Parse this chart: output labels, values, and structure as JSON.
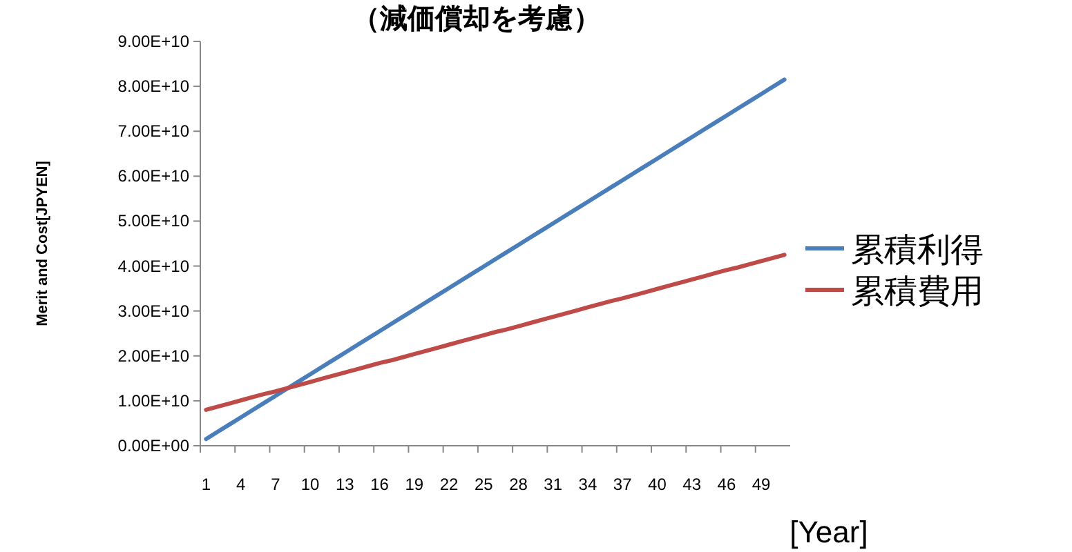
{
  "chart_data": {
    "type": "line",
    "title": "（減価償却を考慮）",
    "xlabel": "[Year]",
    "ylabel": "Merit and Cost[JPYEN]",
    "categories": [
      "1",
      null,
      null,
      "4",
      null,
      null,
      "7",
      null,
      null,
      "10",
      null,
      null,
      "13",
      null,
      null,
      "16",
      null,
      null,
      "19",
      null,
      null,
      "22",
      null,
      null,
      "25",
      null,
      null,
      "28",
      null,
      null,
      "31",
      null,
      null,
      "34",
      null,
      null,
      "37",
      null,
      null,
      "40",
      null,
      null,
      "43",
      null,
      null,
      "46",
      null,
      null,
      "49",
      null,
      null
    ],
    "series": [
      {
        "name": "累積利得",
        "color": "#4a7ebb",
        "values": [
          1500000000.0,
          3100000000.0,
          4700000000.0,
          6300000000.0,
          7900000000.0,
          9500000000.0,
          11100000000.0,
          12700000000.0,
          14300000000.0,
          15900000000.0,
          17500000000.0,
          19100000000.0,
          20700000000.0,
          22300000000.0,
          23900000000.0,
          25500000000.0,
          27100000000.0,
          28700000000.0,
          30300000000.0,
          31900000000.0,
          33500000000.0,
          35100000000.0,
          36700000000.0,
          38300000000.0,
          39900000000.0,
          41500000000.0,
          43100000000.0,
          44700000000.0,
          46300000000.0,
          47900000000.0,
          49500000000.0,
          51100000000.0,
          52700000000.0,
          54300000000.0,
          55900000000.0,
          57500000000.0,
          59100000000.0,
          60700000000.0,
          62300000000.0,
          63900000000.0,
          65500000000.0,
          67100000000.0,
          68700000000.0,
          70300000000.0,
          71900000000.0,
          73500000000.0,
          75100000000.0,
          76700000000.0,
          78300000000.0,
          79900000000.0,
          81500000000.0
        ]
      },
      {
        "name": "累積費用",
        "color": "#be4b48",
        "values": [
          8000000000.0,
          8700000000.0,
          9400000000.0,
          10100000000.0,
          10800000000.0,
          11500000000.0,
          12100000000.0,
          12800000000.0,
          13500000000.0,
          14200000000.0,
          14900000000.0,
          15600000000.0,
          16300000000.0,
          17000000000.0,
          17700000000.0,
          18400000000.0,
          19000000000.0,
          19700000000.0,
          20400000000.0,
          21100000000.0,
          21800000000.0,
          22500000000.0,
          23200000000.0,
          23900000000.0,
          24600000000.0,
          25300000000.0,
          25900000000.0,
          26600000000.0,
          27300000000.0,
          28000000000.0,
          28700000000.0,
          29400000000.0,
          30100000000.0,
          30800000000.0,
          31500000000.0,
          32200000000.0,
          32800000000.0,
          33500000000.0,
          34200000000.0,
          34900000000.0,
          35600000000.0,
          36300000000.0,
          37000000000.0,
          37700000000.0,
          38400000000.0,
          39100000000.0,
          39700000000.0,
          40400000000.0,
          41100000000.0,
          41800000000.0,
          42500000000.0
        ]
      }
    ],
    "ylim": [
      0,
      90000000000.0
    ],
    "yticks": [
      {
        "value": 0,
        "label": "0.00E+00"
      },
      {
        "value": 10000000000.0,
        "label": "1.00E+10"
      },
      {
        "value": 20000000000.0,
        "label": "2.00E+10"
      },
      {
        "value": 30000000000.0,
        "label": "3.00E+10"
      },
      {
        "value": 40000000000.0,
        "label": "4.00E+10"
      },
      {
        "value": 50000000000.0,
        "label": "5.00E+10"
      },
      {
        "value": 60000000000.0,
        "label": "6.00E+10"
      },
      {
        "value": 70000000000.0,
        "label": "7.00E+10"
      },
      {
        "value": 80000000000.0,
        "label": "8.00E+10"
      },
      {
        "value": 90000000000.0,
        "label": "9.00E+10"
      }
    ],
    "legend": "right",
    "line_style": "solid"
  }
}
